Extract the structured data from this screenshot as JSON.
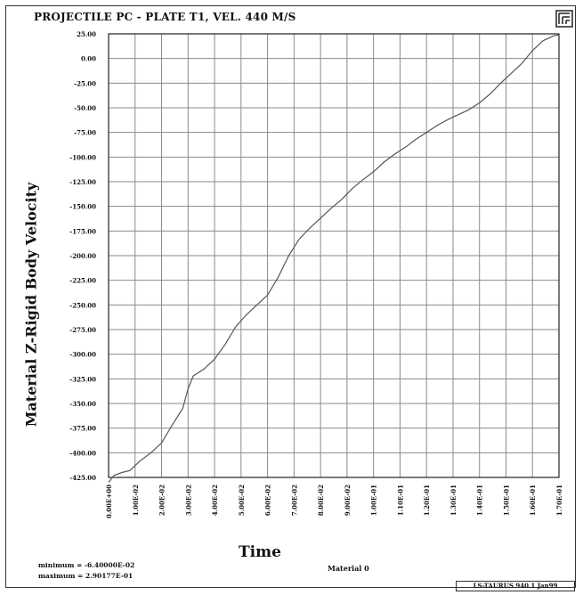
{
  "chart_data": {
    "type": "line",
    "title": "PROJECTILE PC - PLATE T1, VEL. 440 M/S",
    "xlabel": "Time",
    "ylabel": "Material Z-Rigid Body Velocity",
    "xlim": [
      0,
      0.17
    ],
    "ylim": [
      -425,
      25
    ],
    "grid": true,
    "x_ticks": [
      0.0,
      0.01,
      0.02,
      0.03,
      0.04,
      0.05,
      0.06,
      0.07,
      0.08,
      0.09,
      0.1,
      0.11,
      0.12,
      0.13,
      0.14,
      0.15,
      0.16,
      0.17
    ],
    "x_tick_labels": [
      "0.00E+00",
      "1.00E-02",
      "2.00E-02",
      "3.00E-02",
      "4.00E-02",
      "5.00E-02",
      "6.00E-02",
      "7.00E-02",
      "8.00E-02",
      "9.00E-02",
      "1.00E-01",
      "1.10E-01",
      "1.20E-01",
      "1.30E-01",
      "1.40E-01",
      "1.50E-01",
      "1.60E-01",
      "1.70E-01"
    ],
    "y_ticks": [
      25,
      0,
      -25,
      -50,
      -75,
      -100,
      -125,
      -150,
      -175,
      -200,
      -225,
      -250,
      -275,
      -300,
      -325,
      -350,
      -375,
      -400,
      -425
    ],
    "y_tick_labels": [
      "25.00",
      "0.00",
      "-25.00",
      "-50.00",
      "-75.00",
      "-100.00",
      "-125.00",
      "-150.00",
      "-175.00",
      "-200.00",
      "-225.00",
      "-250.00",
      "-275.00",
      "-300.00",
      "-325.00",
      "-350.00",
      "-375.00",
      "-400.00",
      "-425.00"
    ],
    "series": [
      {
        "x": [
          0.0,
          0.002,
          0.005,
          0.008,
          0.012,
          0.016,
          0.02,
          0.024,
          0.028,
          0.03,
          0.032,
          0.036,
          0.04,
          0.044,
          0.048,
          0.052,
          0.056,
          0.06,
          0.064,
          0.068,
          0.072,
          0.076,
          0.08,
          0.084,
          0.088,
          0.092,
          0.096,
          0.1,
          0.104,
          0.108,
          0.112,
          0.116,
          0.12,
          0.124,
          0.128,
          0.132,
          0.136,
          0.14,
          0.144,
          0.148,
          0.152,
          0.156,
          0.16,
          0.164,
          0.168,
          0.17
        ],
        "y": [
          -430,
          -423,
          -420,
          -418,
          -408,
          -400,
          -390,
          -372,
          -355,
          -335,
          -322,
          -315,
          -305,
          -290,
          -272,
          -260,
          -250,
          -240,
          -222,
          -200,
          -183,
          -172,
          -162,
          -152,
          -143,
          -132,
          -123,
          -115,
          -105,
          -97,
          -90,
          -82,
          -75,
          -68,
          -62,
          -57,
          -52,
          -45,
          -36,
          -25,
          -15,
          -5,
          8,
          18,
          23,
          24
        ]
      }
    ]
  },
  "notes": {
    "min_label": "minimum = -6.40000E-02",
    "max_label": "maximum = 2.90177E-01"
  },
  "material_label": "Material 0",
  "footer_code": "LS-TAURUS 940.1 Jan99",
  "colors": {
    "grid": "#8a8a8a",
    "line": "#555555",
    "axis": "#222222"
  }
}
